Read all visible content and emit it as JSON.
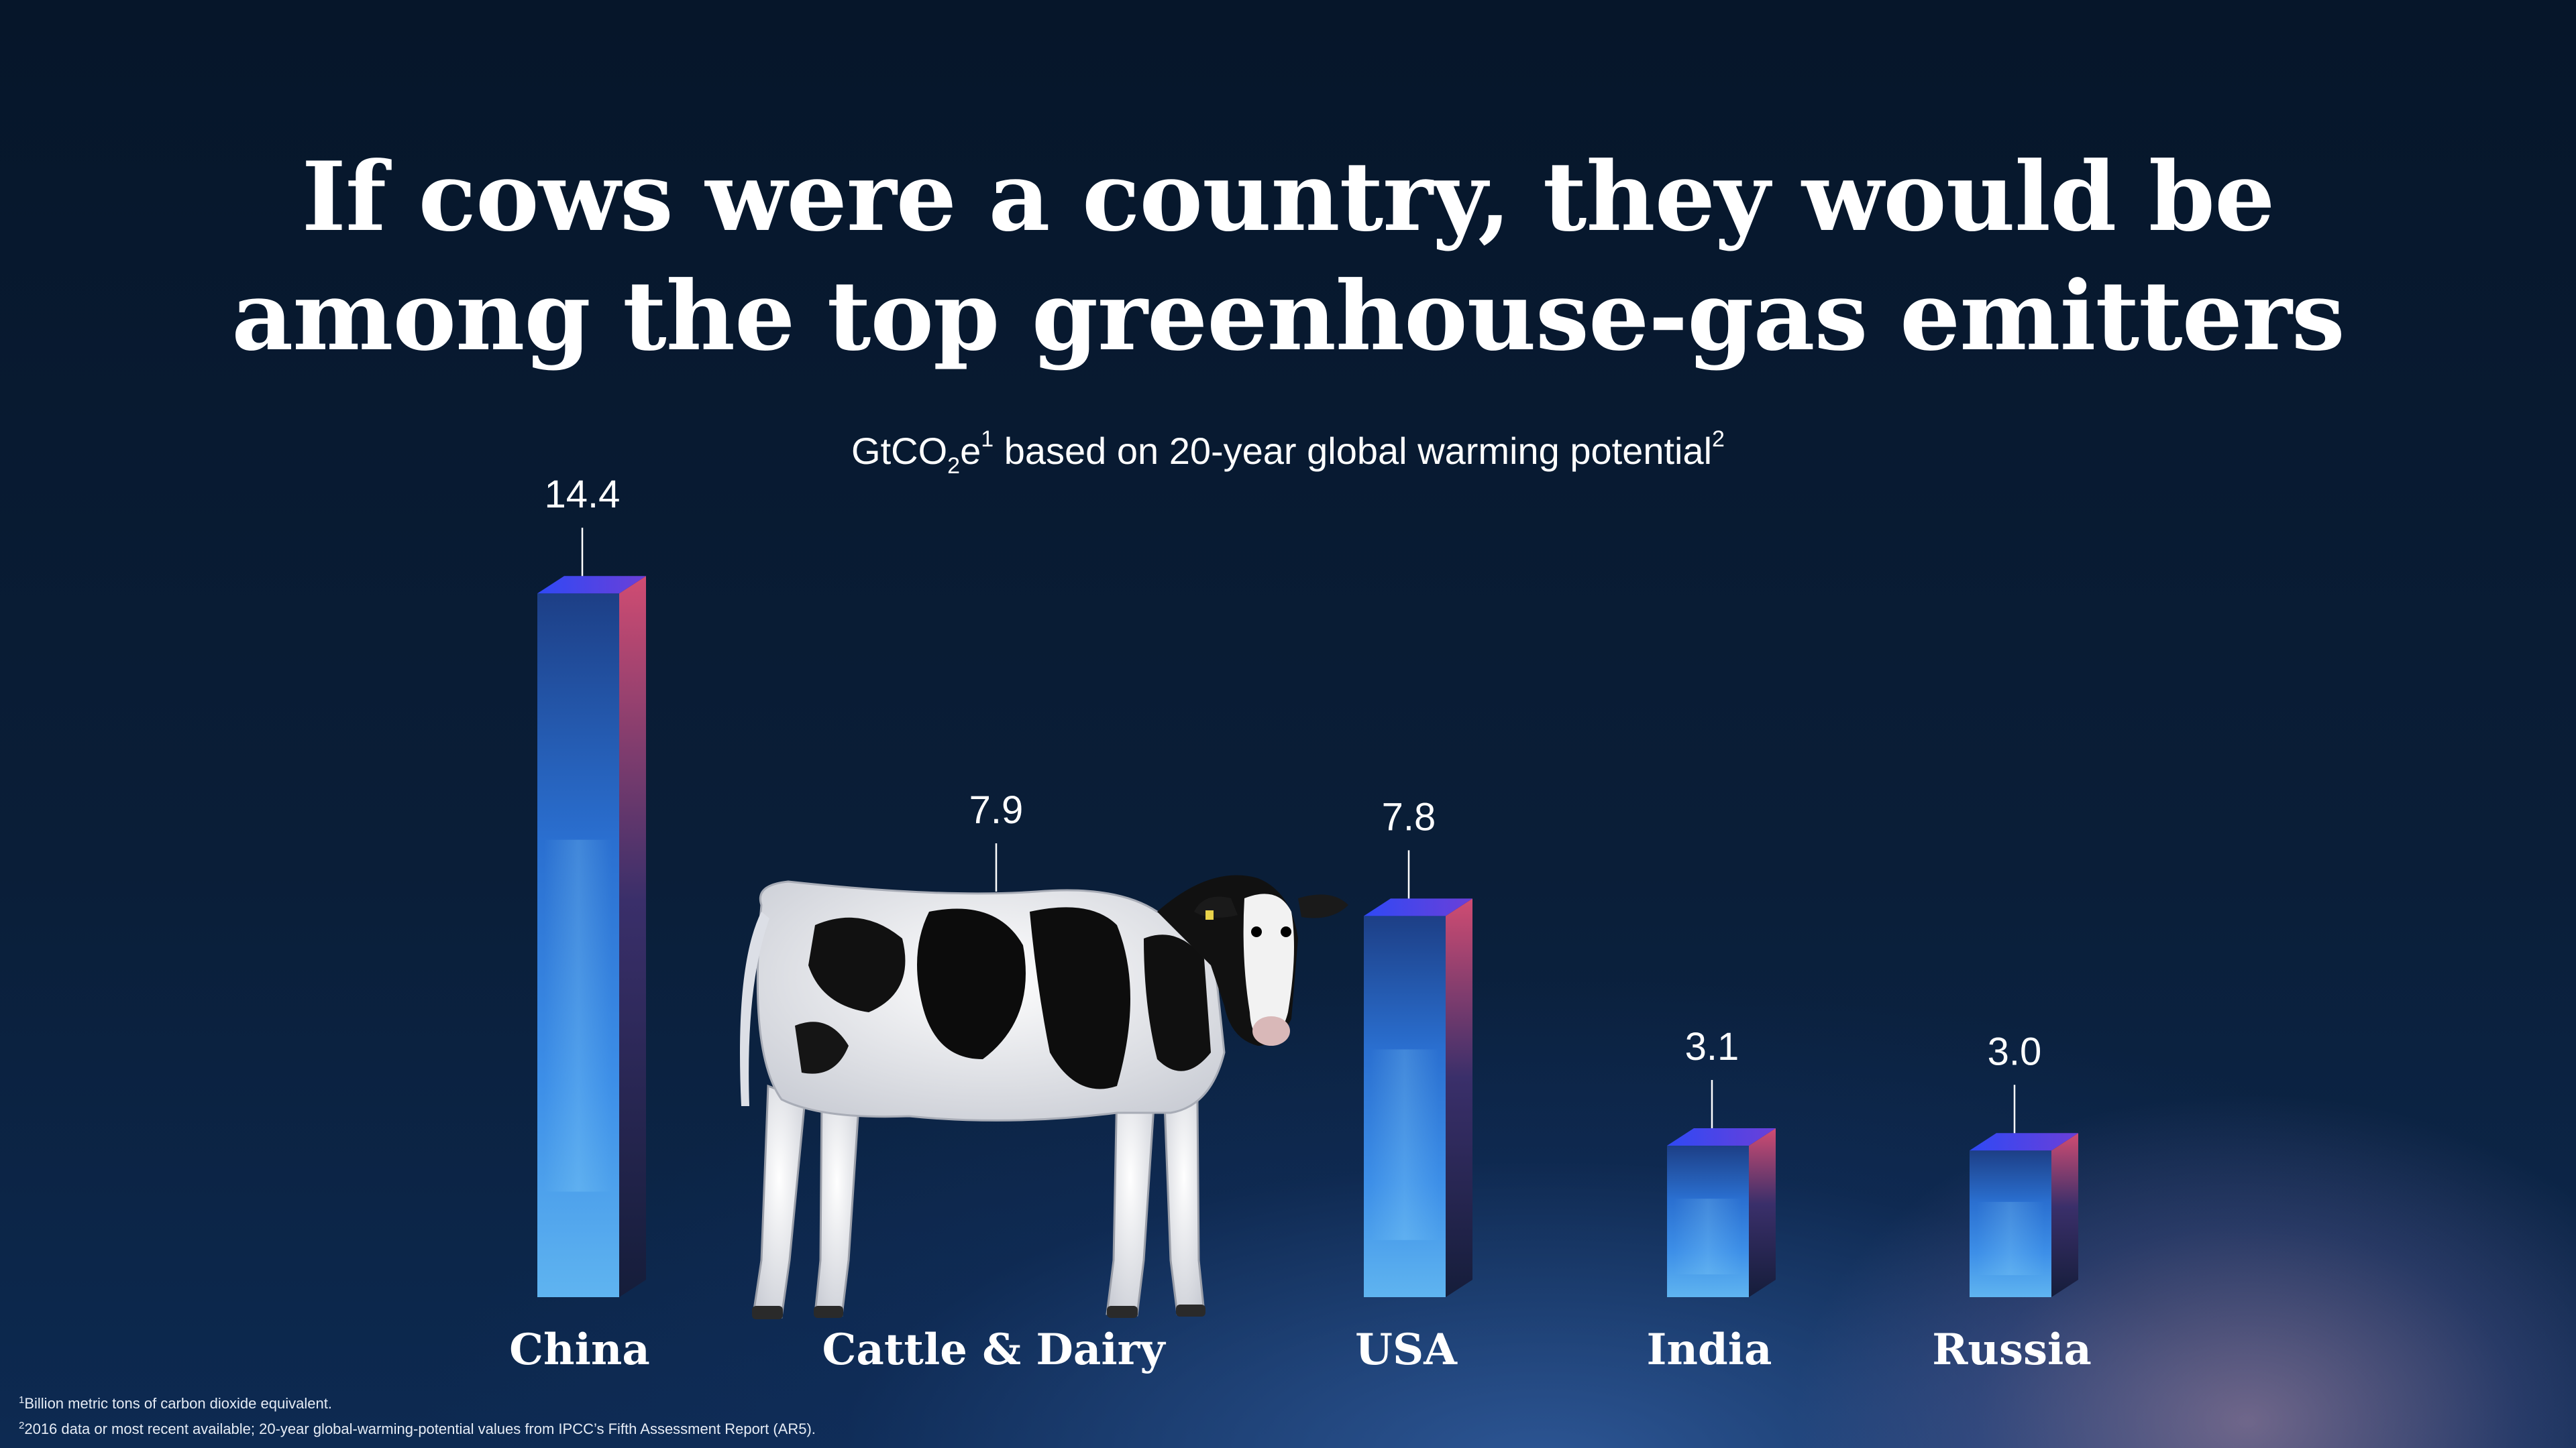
{
  "title_line1": "If cows were a country, they would be",
  "title_line2": "among the top greenhouse-gas emitters",
  "subtitle": {
    "part1": "GtCO",
    "sub": "2",
    "part2": "e",
    "sup1": "1",
    "part3": " based on 20-year global warming potential",
    "sup2": "2"
  },
  "chart_data": {
    "type": "bar",
    "categories": [
      "China",
      "Cattle & Dairy",
      "USA",
      "India",
      "Russia"
    ],
    "values": [
      14.4,
      7.9,
      7.8,
      3.1,
      3.0
    ],
    "value_labels": [
      "14.4",
      "7.9",
      "7.8",
      "3.1",
      "3.0"
    ],
    "highlight_category": "Cattle & Dairy",
    "highlight_icon": "cow-icon",
    "colors": {
      "bar_front_top": "#1d3f86",
      "bar_front_mid": "#2f7fe0",
      "bar_top_face": "#3a4df0",
      "bar_side": "#c8456a",
      "bar_side_dark": "#1a2550"
    }
  },
  "footnotes": [
    {
      "sup": "1",
      "text": "Billion metric tons of carbon dioxide equivalent."
    },
    {
      "sup": "2",
      "text": "2016 data or most recent available; 20-year global-warming-potential values from IPCC’s Fifth Assessment Report (AR5)."
    }
  ]
}
